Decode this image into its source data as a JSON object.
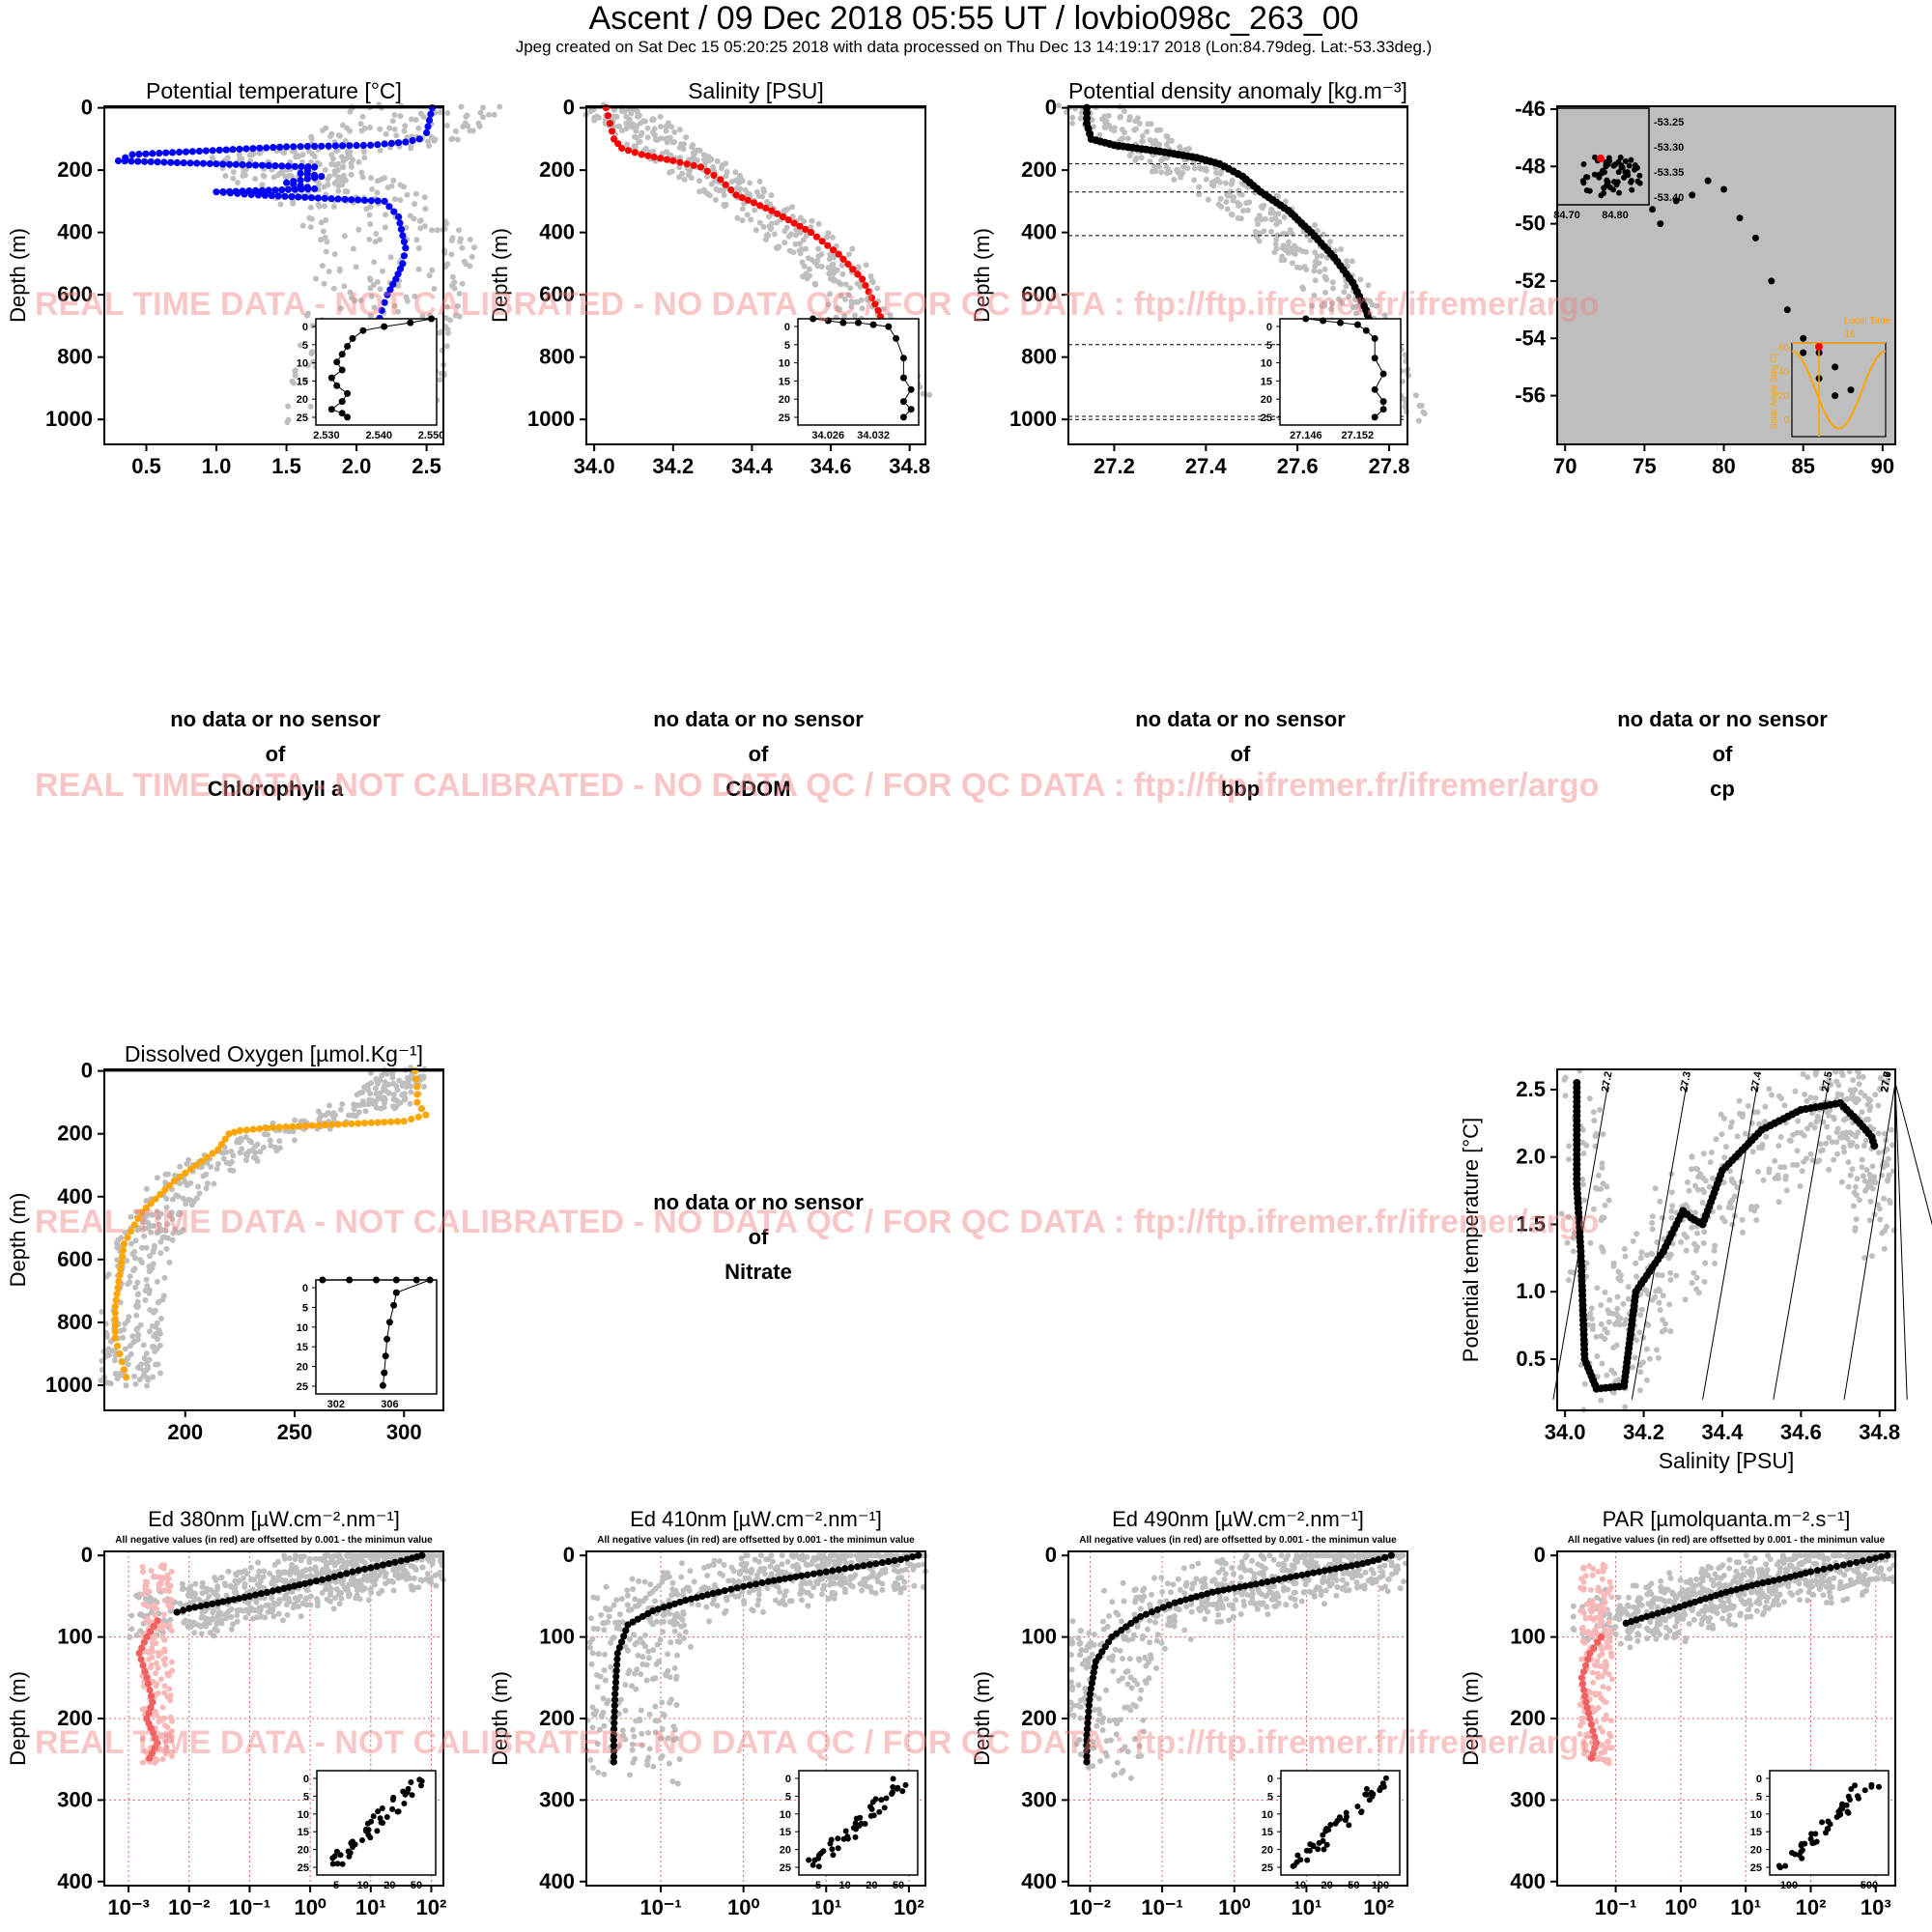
{
  "header": {
    "title": "Ascent / 09 Dec 2018 05:55 UT /  lovbio098c_263_00",
    "subtitle": "Jpeg created on Sat Dec 15 05:20:25 2018 with data processed on Thu Dec 13 14:19:17 2018 (Lon:84.79deg. Lat:-53.33deg.)"
  },
  "watermark": "REAL TIME DATA - NOT CALIBRATED - NO DATA QC   /  FOR QC DATA : ftp://ftp.ifremer.fr/ifremer/argo",
  "no_data": {
    "line1": "no data or no sensor",
    "line2": "of",
    "chlorophyll": "Chlorophyll a",
    "cdom": "CDOM",
    "bbp": "bbp",
    "cp": "cp",
    "nitrate": "Nitrate"
  },
  "colors": {
    "temperature": "#0000ff",
    "salinity": "#ff0000",
    "density": "#000000",
    "oxygen": "#ffa500",
    "climatology": "#bebebe",
    "negative": "#f06060",
    "watermark": "#f08080"
  },
  "chart_data": [
    {
      "id": "temp",
      "type": "scatter",
      "title": "Potential temperature [°C]",
      "ylabel": "Depth (m)",
      "xlim": [
        0.2,
        2.62
      ],
      "ylim": [
        1080,
        -5
      ],
      "xticks": [
        "0.5",
        "1.0",
        "1.5",
        "2.0",
        "2.5"
      ],
      "yticks": [
        "0",
        "200",
        "400",
        "600",
        "800",
        "1000"
      ],
      "series": [
        {
          "color": "#0000ff",
          "x": [
            2.54,
            2.52,
            2.5,
            2.45,
            2.35,
            2.1,
            1.5,
            0.4,
            0.3,
            1.0,
            1.7,
            1.6,
            1.75,
            1.5,
            1.7,
            1.0,
            1.3,
            2.2,
            2.3,
            2.35,
            2.33,
            2.28,
            2.22,
            2.18,
            2.15,
            2.12,
            2.1,
            2.07,
            2.04
          ],
          "y": [
            0,
            40,
            80,
            100,
            110,
            120,
            125,
            150,
            170,
            180,
            190,
            210,
            220,
            240,
            260,
            270,
            280,
            300,
            350,
            450,
            500,
            550,
            600,
            650,
            700,
            800,
            900,
            950,
            1000
          ]
        }
      ],
      "inset": {
        "yticks": [
          "0",
          "5",
          "10",
          "15",
          "20",
          "25"
        ],
        "xticks": [
          "2.530",
          "2.540",
          "2.550"
        ],
        "xlim": [
          2.528,
          2.551
        ],
        "ylim": [
          27,
          0
        ],
        "x": [
          2.55,
          2.546,
          2.541,
          2.537,
          2.535,
          2.534,
          2.533,
          2.532,
          2.533,
          2.531,
          2.532,
          2.534,
          2.533,
          2.531,
          2.533,
          2.534
        ],
        "y": [
          0,
          1,
          2,
          3,
          5,
          7,
          9,
          11,
          13,
          15,
          17,
          19,
          21,
          23,
          24,
          25
        ]
      }
    },
    {
      "id": "sal",
      "type": "scatter",
      "title": "Salinity [PSU]",
      "ylabel": "Depth (m)",
      "xlim": [
        33.98,
        34.84
      ],
      "ylim": [
        1080,
        -5
      ],
      "xticks": [
        "34.0",
        "34.2",
        "34.4",
        "34.6",
        "34.8"
      ],
      "yticks": [
        "0",
        "200",
        "400",
        "600",
        "800",
        "1000"
      ],
      "series": [
        {
          "color": "#ff0000",
          "x": [
            34.03,
            34.04,
            34.05,
            34.07,
            34.12,
            34.2,
            34.27,
            34.32,
            34.36,
            34.45,
            34.55,
            34.62,
            34.68,
            34.72,
            34.75,
            34.77,
            34.78,
            34.79
          ],
          "y": [
            0,
            50,
            100,
            130,
            150,
            170,
            190,
            230,
            280,
            330,
            400,
            470,
            550,
            650,
            750,
            850,
            950,
            1000
          ]
        }
      ],
      "inset": {
        "yticks": [
          "0",
          "5",
          "10",
          "15",
          "20",
          "25"
        ],
        "xticks": [
          "34.026",
          "34.032"
        ],
        "xlim": [
          34.022,
          34.038
        ],
        "ylim": [
          27,
          0
        ],
        "x": [
          34.024,
          34.026,
          34.028,
          34.03,
          34.032,
          34.034,
          34.035,
          34.036,
          34.036,
          34.037,
          34.036,
          34.037,
          34.036
        ],
        "y": [
          0,
          0.5,
          1,
          1,
          1.5,
          2,
          5,
          10,
          15,
          18,
          21,
          23,
          25
        ]
      }
    },
    {
      "id": "dens",
      "type": "scatter",
      "title": "Potential density anomaly [kg.m⁻³]",
      "ylabel": "Depth (m)",
      "xlim": [
        27.1,
        27.84
      ],
      "ylim": [
        1080,
        -5
      ],
      "xticks": [
        "27.2",
        "27.4",
        "27.6",
        "27.8"
      ],
      "yticks": [
        "0",
        "200",
        "400",
        "600",
        "800",
        "1000"
      ],
      "mld_lines": [
        0,
        180,
        270,
        410,
        760,
        990,
        1000
      ],
      "series": [
        {
          "color": "#000000",
          "x": [
            27.14,
            27.14,
            27.15,
            27.2,
            27.3,
            27.38,
            27.43,
            27.48,
            27.52,
            27.58,
            27.63,
            27.68,
            27.72,
            27.75,
            27.77,
            27.79,
            27.8
          ],
          "y": [
            0,
            50,
            100,
            120,
            140,
            160,
            180,
            220,
            270,
            330,
            400,
            480,
            560,
            650,
            750,
            850,
            1000
          ]
        }
      ],
      "inset": {
        "yticks": [
          "0",
          "5",
          "10",
          "15",
          "20",
          "25"
        ],
        "xticks": [
          "27.146",
          "27.152"
        ],
        "xlim": [
          27.143,
          27.157
        ],
        "ylim": [
          27,
          0
        ],
        "x": [
          27.146,
          27.148,
          27.15,
          27.152,
          27.153,
          27.154,
          27.154,
          27.155,
          27.154,
          27.155,
          27.155,
          27.154
        ],
        "y": [
          0,
          0.5,
          1,
          1.5,
          3,
          5,
          10,
          14,
          18,
          21,
          23,
          25
        ]
      }
    },
    {
      "id": "map",
      "type": "scatter",
      "title": "",
      "xlim": [
        69.5,
        90.8
      ],
      "ylim": [
        -57.7,
        -45.9
      ],
      "xticks": [
        "70",
        "75",
        "80",
        "85",
        "90"
      ],
      "yticks": [
        "-46",
        "-48",
        "-50",
        "-52",
        "-54",
        "-56"
      ],
      "x": [
        73.5,
        74.5,
        75.5,
        76,
        77,
        78,
        79,
        80,
        81,
        82,
        83,
        84,
        85,
        86,
        87,
        88,
        87,
        86,
        85
      ],
      "y": [
        -48.4,
        -48.9,
        -49.5,
        -50,
        -49.2,
        -49,
        -48.5,
        -48.8,
        -49.8,
        -50.5,
        -52,
        -53,
        -54,
        -54.5,
        -55,
        -55.8,
        -56,
        -55.4,
        -54.5
      ],
      "map_inset": {
        "yticks": [
          "-53.25",
          "-53.30",
          "-53.35",
          "-53.40"
        ],
        "xticks": [
          "84.70",
          "84.80"
        ]
      },
      "solar": {
        "label": "Local Time",
        "ylabel": "Solar Angle (deg C)",
        "yticks": [
          "60",
          "40",
          "20",
          "0"
        ],
        "xtick": "16"
      }
    },
    {
      "id": "oxy",
      "type": "scatter",
      "title": "Dissolved Oxygen [µmol.Kg⁻¹]",
      "ylabel": "Depth (m)",
      "xlim": [
        163,
        318
      ],
      "ylim": [
        1080,
        -5
      ],
      "xticks": [
        "200",
        "250",
        "300"
      ],
      "yticks": [
        "0",
        "200",
        "400",
        "600",
        "800",
        "1000"
      ],
      "series": [
        {
          "color": "#ffa500",
          "x": [
            305,
            306,
            306,
            310,
            300,
            270,
            240,
            225,
            220,
            215,
            195,
            180,
            172,
            170,
            168,
            168,
            170,
            172,
            174
          ],
          "y": [
            0,
            50,
            100,
            140,
            160,
            170,
            180,
            190,
            200,
            250,
            350,
            450,
            550,
            650,
            750,
            850,
            900,
            950,
            1000
          ]
        }
      ],
      "inset": {
        "yticks": [
          "0",
          "5",
          "10",
          "15",
          "20",
          "25"
        ],
        "xticks": [
          "302",
          "306"
        ],
        "xlim": [
          300.5,
          309.5
        ],
        "ylim": [
          27,
          0
        ],
        "x": [
          301,
          303,
          305,
          306.5,
          308,
          309,
          306.5,
          306.3,
          306,
          305.8,
          305.7,
          305.6,
          305.5
        ],
        "y": [
          0,
          0,
          0,
          0,
          0,
          0,
          3,
          6,
          10,
          14,
          18,
          22,
          25
        ]
      }
    },
    {
      "id": "ts",
      "type": "scatter",
      "title": "",
      "xlabel": "Salinity [PSU]",
      "ylabel": "Potential temperature [°C]",
      "xlim": [
        33.98,
        34.84
      ],
      "ylim": [
        0.12,
        2.65
      ],
      "xticks": [
        "34.0",
        "34.2",
        "34.4",
        "34.6",
        "34.8"
      ],
      "yticks": [
        "0.5",
        "1.0",
        "1.5",
        "2.0",
        "2.5"
      ],
      "isopycnals": [
        "27.2",
        "27.3",
        "27.4",
        "27.5",
        "27.6",
        "27.7",
        "27.9"
      ],
      "series": [
        {
          "color": "#000000",
          "x": [
            34.03,
            34.03,
            34.03,
            34.04,
            34.05,
            34.08,
            34.15,
            34.18,
            34.25,
            34.3,
            34.32,
            34.35,
            34.4,
            34.5,
            34.6,
            34.7,
            34.75,
            34.78,
            34.79
          ],
          "y": [
            2.55,
            2.2,
            1.8,
            1.3,
            0.5,
            0.28,
            0.3,
            1.0,
            1.3,
            1.6,
            1.55,
            1.5,
            1.9,
            2.2,
            2.35,
            2.4,
            2.25,
            2.15,
            2.05
          ]
        }
      ]
    },
    {
      "id": "ed380",
      "type": "scatter",
      "title": "Ed 380nm [µW.cm⁻².nm⁻¹]",
      "note": "All negative values (in red) are offsetted by 0.001 - the minimun value",
      "ylabel": "Depth (m)",
      "xlog": true,
      "xlim_log": [
        -3.4,
        2.2
      ],
      "ylim": [
        405,
        -5
      ],
      "xticks": [
        "10⁻³",
        "10⁻²",
        "10⁻¹",
        "10⁰",
        "10¹",
        "10²"
      ],
      "yticks": [
        "0",
        "100",
        "200",
        "300",
        "400"
      ],
      "series": [
        {
          "color": "#000000",
          "x": [
            70,
            40,
            20,
            10,
            5,
            2,
            1,
            0.3,
            0.1,
            0.03,
            0.01,
            0.005
          ],
          "y": [
            0,
            5,
            10,
            15,
            20,
            28,
            33,
            42,
            50,
            58,
            65,
            72
          ]
        },
        {
          "color": "#f06060",
          "x": [
            0.003,
            0.002,
            0.0015,
            0.002,
            0.0025,
            0.002,
            0.003,
            0.002
          ],
          "y": [
            80,
            100,
            120,
            150,
            180,
            200,
            230,
            255
          ]
        }
      ],
      "inset": {
        "yticks": [
          "0",
          "5",
          "10",
          "15",
          "20",
          "25"
        ],
        "xticks": [
          "5",
          "10",
          "20",
          "50"
        ]
      }
    },
    {
      "id": "ed410",
      "type": "scatter",
      "title": "Ed 410nm [µW.cm⁻².nm⁻¹]",
      "note": "All negative values (in red) are offsetted by 0.001 - the minimun value",
      "ylabel": "Depth (m)",
      "xlog": true,
      "xlim_log": [
        -1.9,
        2.2
      ],
      "ylim": [
        405,
        -5
      ],
      "xticks": [
        "10⁻¹",
        "10⁰",
        "10¹",
        "10²"
      ],
      "yticks": [
        "0",
        "100",
        "200",
        "300",
        "400"
      ],
      "series": [
        {
          "color": "#000000",
          "x": [
            130,
            80,
            40,
            20,
            10,
            5,
            2,
            1,
            0.5,
            0.2,
            0.08,
            0.04,
            0.03,
            0.028,
            0.027,
            0.027
          ],
          "y": [
            0,
            5,
            10,
            15,
            20,
            25,
            32,
            38,
            45,
            55,
            68,
            85,
            120,
            170,
            220,
            260
          ]
        }
      ],
      "inset": {
        "yticks": [
          "0",
          "5",
          "10",
          "15",
          "20",
          "25"
        ],
        "xticks": [
          "5",
          "10",
          "20",
          "50"
        ]
      }
    },
    {
      "id": "ed490",
      "type": "scatter",
      "title": "Ed 490nm [µW.cm⁻².nm⁻¹]",
      "note": "All negative values (in red) are offsetted by 0.001 - the minimun value",
      "ylabel": "Depth (m)",
      "xlog": true,
      "xlim_log": [
        -2.3,
        2.4
      ],
      "ylim": [
        405,
        -5
      ],
      "xticks": [
        "10⁻²",
        "10⁻¹",
        "10⁰",
        "10¹",
        "10²"
      ],
      "yticks": [
        "0",
        "100",
        "200",
        "300",
        "400"
      ],
      "series": [
        {
          "color": "#000000",
          "x": [
            150,
            100,
            60,
            30,
            15,
            5,
            2,
            0.5,
            0.15,
            0.05,
            0.02,
            0.012,
            0.01,
            0.009,
            0.009
          ],
          "y": [
            0,
            5,
            10,
            15,
            20,
            28,
            35,
            45,
            58,
            75,
            100,
            130,
            170,
            220,
            260
          ]
        }
      ],
      "inset": {
        "yticks": [
          "0",
          "5",
          "10",
          "15",
          "20",
          "25"
        ],
        "xticks": [
          "10",
          "20",
          "50",
          "100"
        ]
      }
    },
    {
      "id": "par",
      "type": "scatter",
      "title": "PAR [µmolquanta.m⁻².s⁻¹]",
      "note": "All negative values (in red) are offsetted by 0.001 - the minimun value",
      "ylabel": "Depth (m)",
      "xlog": true,
      "xlim_log": [
        -1.9,
        3.3
      ],
      "ylim": [
        405,
        -5
      ],
      "xticks": [
        "10⁻¹",
        "10⁰",
        "10¹",
        "10²",
        "10³"
      ],
      "yticks": [
        "0",
        "100",
        "200",
        "300",
        "400"
      ],
      "series": [
        {
          "color": "#000000",
          "x": [
            1500,
            800,
            400,
            200,
            100,
            40,
            15,
            5,
            2,
            0.8,
            0.3,
            0.12
          ],
          "y": [
            0,
            5,
            10,
            15,
            20,
            28,
            35,
            45,
            55,
            65,
            75,
            85
          ]
        },
        {
          "color": "#f06060",
          "x": [
            0.06,
            0.04,
            0.03,
            0.035,
            0.04,
            0.05,
            0.04
          ],
          "y": [
            100,
            120,
            150,
            180,
            200,
            230,
            255
          ]
        }
      ],
      "inset": {
        "yticks": [
          "0",
          "5",
          "10",
          "15",
          "20",
          "25"
        ],
        "xticks": [
          "100",
          "500"
        ]
      }
    }
  ]
}
